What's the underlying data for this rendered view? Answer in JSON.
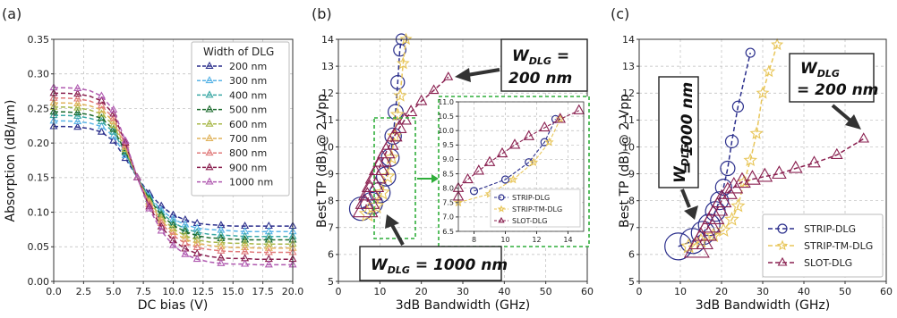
{
  "chart_data": [
    {
      "type": "line",
      "panel_label": "(a)",
      "xlabel": "DC bias (V)",
      "ylabel": "Absorption (dB/μm)",
      "xlim": [
        0,
        20
      ],
      "ylim": [
        0,
        0.35
      ],
      "xticks": [
        "0.0",
        "2.5",
        "5.0",
        "7.5",
        "10.0",
        "12.5",
        "15.0",
        "17.5",
        "20.0"
      ],
      "yticks": [
        "0.00",
        "0.05",
        "0.10",
        "0.15",
        "0.20",
        "0.25",
        "0.30",
        "0.35"
      ],
      "grid": true,
      "legend": {
        "title": "Width of DLG",
        "position": "top-right"
      },
      "x": [
        0,
        1,
        2,
        3,
        4,
        5,
        6,
        7,
        8,
        9,
        10,
        11,
        12,
        13,
        14,
        15,
        16,
        17,
        18,
        19,
        20
      ],
      "series": [
        {
          "name": "200 nm",
          "color": "#2b2f8c",
          "values": [
            0.224,
            0.224,
            0.223,
            0.221,
            0.216,
            0.203,
            0.178,
            0.15,
            0.127,
            0.109,
            0.096,
            0.089,
            0.084,
            0.082,
            0.081,
            0.08,
            0.08,
            0.08,
            0.08,
            0.08,
            0.08
          ]
        },
        {
          "name": "300 nm",
          "color": "#5ab4e6",
          "values": [
            0.232,
            0.232,
            0.231,
            0.229,
            0.224,
            0.21,
            0.182,
            0.15,
            0.123,
            0.103,
            0.09,
            0.082,
            0.077,
            0.075,
            0.074,
            0.073,
            0.072,
            0.072,
            0.072,
            0.072,
            0.072
          ]
        },
        {
          "name": "400 nm",
          "color": "#3aa8a4",
          "values": [
            0.24,
            0.24,
            0.239,
            0.236,
            0.231,
            0.216,
            0.186,
            0.15,
            0.121,
            0.099,
            0.085,
            0.076,
            0.071,
            0.068,
            0.067,
            0.066,
            0.065,
            0.065,
            0.065,
            0.065,
            0.065
          ]
        },
        {
          "name": "500 nm",
          "color": "#1d6b2e",
          "values": [
            0.245,
            0.245,
            0.244,
            0.241,
            0.236,
            0.22,
            0.188,
            0.15,
            0.119,
            0.096,
            0.081,
            0.072,
            0.066,
            0.063,
            0.062,
            0.061,
            0.06,
            0.06,
            0.06,
            0.06,
            0.06
          ]
        },
        {
          "name": "600 nm",
          "color": "#a8b84a",
          "values": [
            0.252,
            0.252,
            0.251,
            0.248,
            0.242,
            0.226,
            0.191,
            0.15,
            0.116,
            0.092,
            0.076,
            0.066,
            0.06,
            0.057,
            0.056,
            0.055,
            0.055,
            0.054,
            0.054,
            0.054,
            0.054
          ]
        },
        {
          "name": "700 nm",
          "color": "#e0b25a",
          "values": [
            0.258,
            0.258,
            0.257,
            0.254,
            0.248,
            0.231,
            0.194,
            0.15,
            0.114,
            0.088,
            0.071,
            0.061,
            0.055,
            0.052,
            0.05,
            0.049,
            0.049,
            0.048,
            0.048,
            0.048,
            0.048
          ]
        },
        {
          "name": "800 nm",
          "color": "#e07a7a",
          "values": [
            0.265,
            0.265,
            0.264,
            0.261,
            0.254,
            0.236,
            0.197,
            0.15,
            0.111,
            0.084,
            0.066,
            0.055,
            0.049,
            0.046,
            0.044,
            0.043,
            0.043,
            0.042,
            0.042,
            0.042,
            0.042
          ]
        },
        {
          "name": "900 nm",
          "color": "#8a2050",
          "values": [
            0.272,
            0.272,
            0.271,
            0.268,
            0.261,
            0.242,
            0.2,
            0.15,
            0.108,
            0.079,
            0.059,
            0.047,
            0.04,
            0.036,
            0.034,
            0.033,
            0.033,
            0.032,
            0.032,
            0.032,
            0.032
          ]
        },
        {
          "name": "1000 nm",
          "color": "#b05ab0",
          "values": [
            0.28,
            0.28,
            0.279,
            0.276,
            0.268,
            0.248,
            0.203,
            0.15,
            0.105,
            0.073,
            0.052,
            0.039,
            0.032,
            0.028,
            0.026,
            0.025,
            0.025,
            0.024,
            0.024,
            0.024,
            0.024
          ]
        }
      ]
    },
    {
      "type": "line",
      "panel_label": "(b)",
      "xlabel": "3dB Bandwidth (GHz)",
      "ylabel": "Best TP (dB) @ 2 Vpp",
      "xlim": [
        0,
        60
      ],
      "ylim": [
        5,
        14
      ],
      "xticks": [
        "0",
        "10",
        "20",
        "30",
        "40",
        "50",
        "60"
      ],
      "yticks": [
        "5",
        "6",
        "7",
        "8",
        "9",
        "10",
        "11",
        "12",
        "13",
        "14"
      ],
      "grid": true,
      "series": [
        {
          "name": "STRIP-DLG",
          "color": "#2b2f8c",
          "marker": "circle",
          "x": [
            5.5,
            8.0,
            10.0,
            11.5,
            12.5,
            13.2,
            13.8,
            14.3,
            14.8,
            15.2
          ],
          "y": [
            7.7,
            7.9,
            8.3,
            8.9,
            9.6,
            10.4,
            11.3,
            12.4,
            13.6,
            14.0
          ]
        },
        {
          "name": "STRIP-TM-DLG",
          "color": "#e8c65a",
          "marker": "star",
          "x": [
            7.0,
            9.0,
            10.5,
            11.8,
            12.8,
            13.5,
            14.2,
            14.9,
            15.6,
            16.3
          ],
          "y": [
            7.5,
            7.8,
            8.3,
            8.9,
            9.6,
            10.4,
            11.2,
            11.9,
            13.1,
            14.0
          ]
        },
        {
          "name": "SLOT-DLG",
          "color": "#8a2050",
          "marker": "triangle",
          "x": [
            6.5,
            7.0,
            7.6,
            8.3,
            9.0,
            9.8,
            10.6,
            11.5,
            12.5,
            13.5,
            14.7,
            16.0,
            17.5,
            20.0,
            23.0,
            26.5
          ],
          "y": [
            7.7,
            8.0,
            8.3,
            8.6,
            8.9,
            9.2,
            9.5,
            9.8,
            10.1,
            10.4,
            10.7,
            11.0,
            11.3,
            11.7,
            12.1,
            12.6
          ]
        }
      ],
      "inset": {
        "xlim": [
          7,
          15
        ],
        "ylim": [
          6.5,
          11.0
        ],
        "xticks": [
          "8",
          "10",
          "12",
          "14"
        ],
        "yticks": [
          "6.5",
          "7.0",
          "7.5",
          "8.0",
          "8.5",
          "9.0",
          "9.5",
          "10.0",
          "10.5",
          "11.0"
        ],
        "legend": [
          "STRIP-DLG",
          "STRIP-TM-DLG",
          "SLOT-DLG"
        ]
      },
      "annotations": [
        {
          "line1": "W",
          "sub": "DLG",
          "line2": " =",
          "line3": "200 nm"
        },
        {
          "line1": "W",
          "sub": "DLG",
          "line2": " = 1000 nm"
        }
      ]
    },
    {
      "type": "line",
      "panel_label": "(c)",
      "xlabel": "3dB Bandwidth (GHz)",
      "ylabel": "Best TP (dB) @ 2 Vpp",
      "xlim": [
        0,
        60
      ],
      "ylim": [
        5,
        14
      ],
      "xticks": [
        "0",
        "10",
        "20",
        "30",
        "40",
        "50",
        "60"
      ],
      "yticks": [
        "5",
        "6",
        "7",
        "8",
        "9",
        "10",
        "11",
        "12",
        "13",
        "14"
      ],
      "grid": true,
      "legend": {
        "position": "bottom-right"
      },
      "series": [
        {
          "name": "STRIP-DLG",
          "color": "#2b2f8c",
          "marker": "circle",
          "x": [
            9.5,
            13.0,
            15.5,
            17.0,
            18.5,
            19.5,
            20.5,
            21.5,
            22.5,
            24.0,
            27.0
          ],
          "y": [
            6.3,
            6.5,
            6.8,
            7.1,
            7.6,
            8.0,
            8.5,
            9.2,
            10.2,
            11.5,
            13.5
          ]
        },
        {
          "name": "STRIP-TM-DLG",
          "color": "#e8c65a",
          "marker": "star",
          "x": [
            12.0,
            15.0,
            18.0,
            20.5,
            22.5,
            24.0,
            25.5,
            27.0,
            28.5,
            30.0,
            31.5,
            33.5
          ],
          "y": [
            6.3,
            6.5,
            6.7,
            6.9,
            7.3,
            7.8,
            8.7,
            9.5,
            10.5,
            12.0,
            12.8,
            13.8
          ]
        },
        {
          "name": "SLOT-DLG",
          "color": "#8a2050",
          "marker": "triangle",
          "x": [
            14.0,
            15.0,
            16.0,
            17.0,
            18.0,
            19.0,
            20.0,
            21.5,
            23.0,
            25.0,
            27.5,
            30.5,
            34.0,
            38.0,
            42.5,
            48.0,
            54.5
          ],
          "y": [
            6.2,
            6.5,
            6.8,
            7.1,
            7.4,
            7.7,
            8.0,
            8.3,
            8.5,
            8.7,
            8.8,
            8.9,
            9.0,
            9.2,
            9.4,
            9.7,
            10.3
          ]
        }
      ],
      "annotations": [
        {
          "line1": "W",
          "sub": "DLG",
          "line2": "= 200 nm"
        },
        {
          "line1": "W",
          "sub": "DLG",
          "line2": "= 1000 nm"
        }
      ]
    }
  ]
}
